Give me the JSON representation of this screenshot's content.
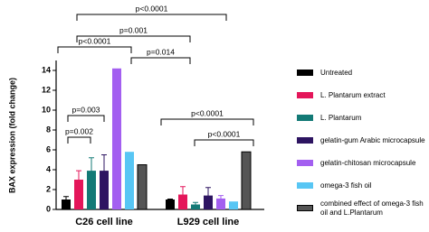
{
  "chart_data": {
    "type": "bar",
    "y_label": "BAX expression (fold change)",
    "categories": [
      "C26 cell line",
      "L929 cell line"
    ],
    "ylim": [
      0,
      15
    ],
    "yticks": [
      0,
      2,
      4,
      6,
      8,
      10,
      12,
      14
    ],
    "series": [
      {
        "name": "Untreated",
        "color": "#000000",
        "values": [
          1.0,
          1.0
        ],
        "errors": [
          0.3,
          0.05
        ]
      },
      {
        "name": "L. Plantarum extract",
        "color": "#e4165a",
        "values": [
          3.0,
          1.5
        ],
        "errors": [
          0.9,
          0.8
        ]
      },
      {
        "name": "L. Plantarum",
        "color": "#137a76",
        "values": [
          3.9,
          0.5
        ],
        "errors": [
          1.3,
          0.2
        ]
      },
      {
        "name": "gelatin-gum Arabic microcapsule",
        "color": "#2d1461",
        "values": [
          3.9,
          1.4
        ],
        "errors": [
          1.6,
          0.8
        ]
      },
      {
        "name": "gelatin-chitosan microcapsule",
        "color": "#a35ff0",
        "values": [
          14.2,
          1.1
        ],
        "errors": [
          0,
          0.3
        ]
      },
      {
        "name": "omega-3 fish oil",
        "color": "#58c6f4",
        "values": [
          5.8,
          0.8
        ],
        "errors": [
          0,
          0
        ]
      },
      {
        "name": "combined effect of omega-3 fish oil and L.Plantarum",
        "color": "#555555",
        "values": [
          4.5,
          5.8
        ],
        "errors": [
          0,
          0
        ]
      }
    ],
    "annotations": [
      "p<0.0001",
      "p=0.001",
      "p<0.0001",
      "p=0.014",
      "p=0.003",
      "p=0.002",
      "p<0.0001",
      "p<0.0001"
    ]
  }
}
